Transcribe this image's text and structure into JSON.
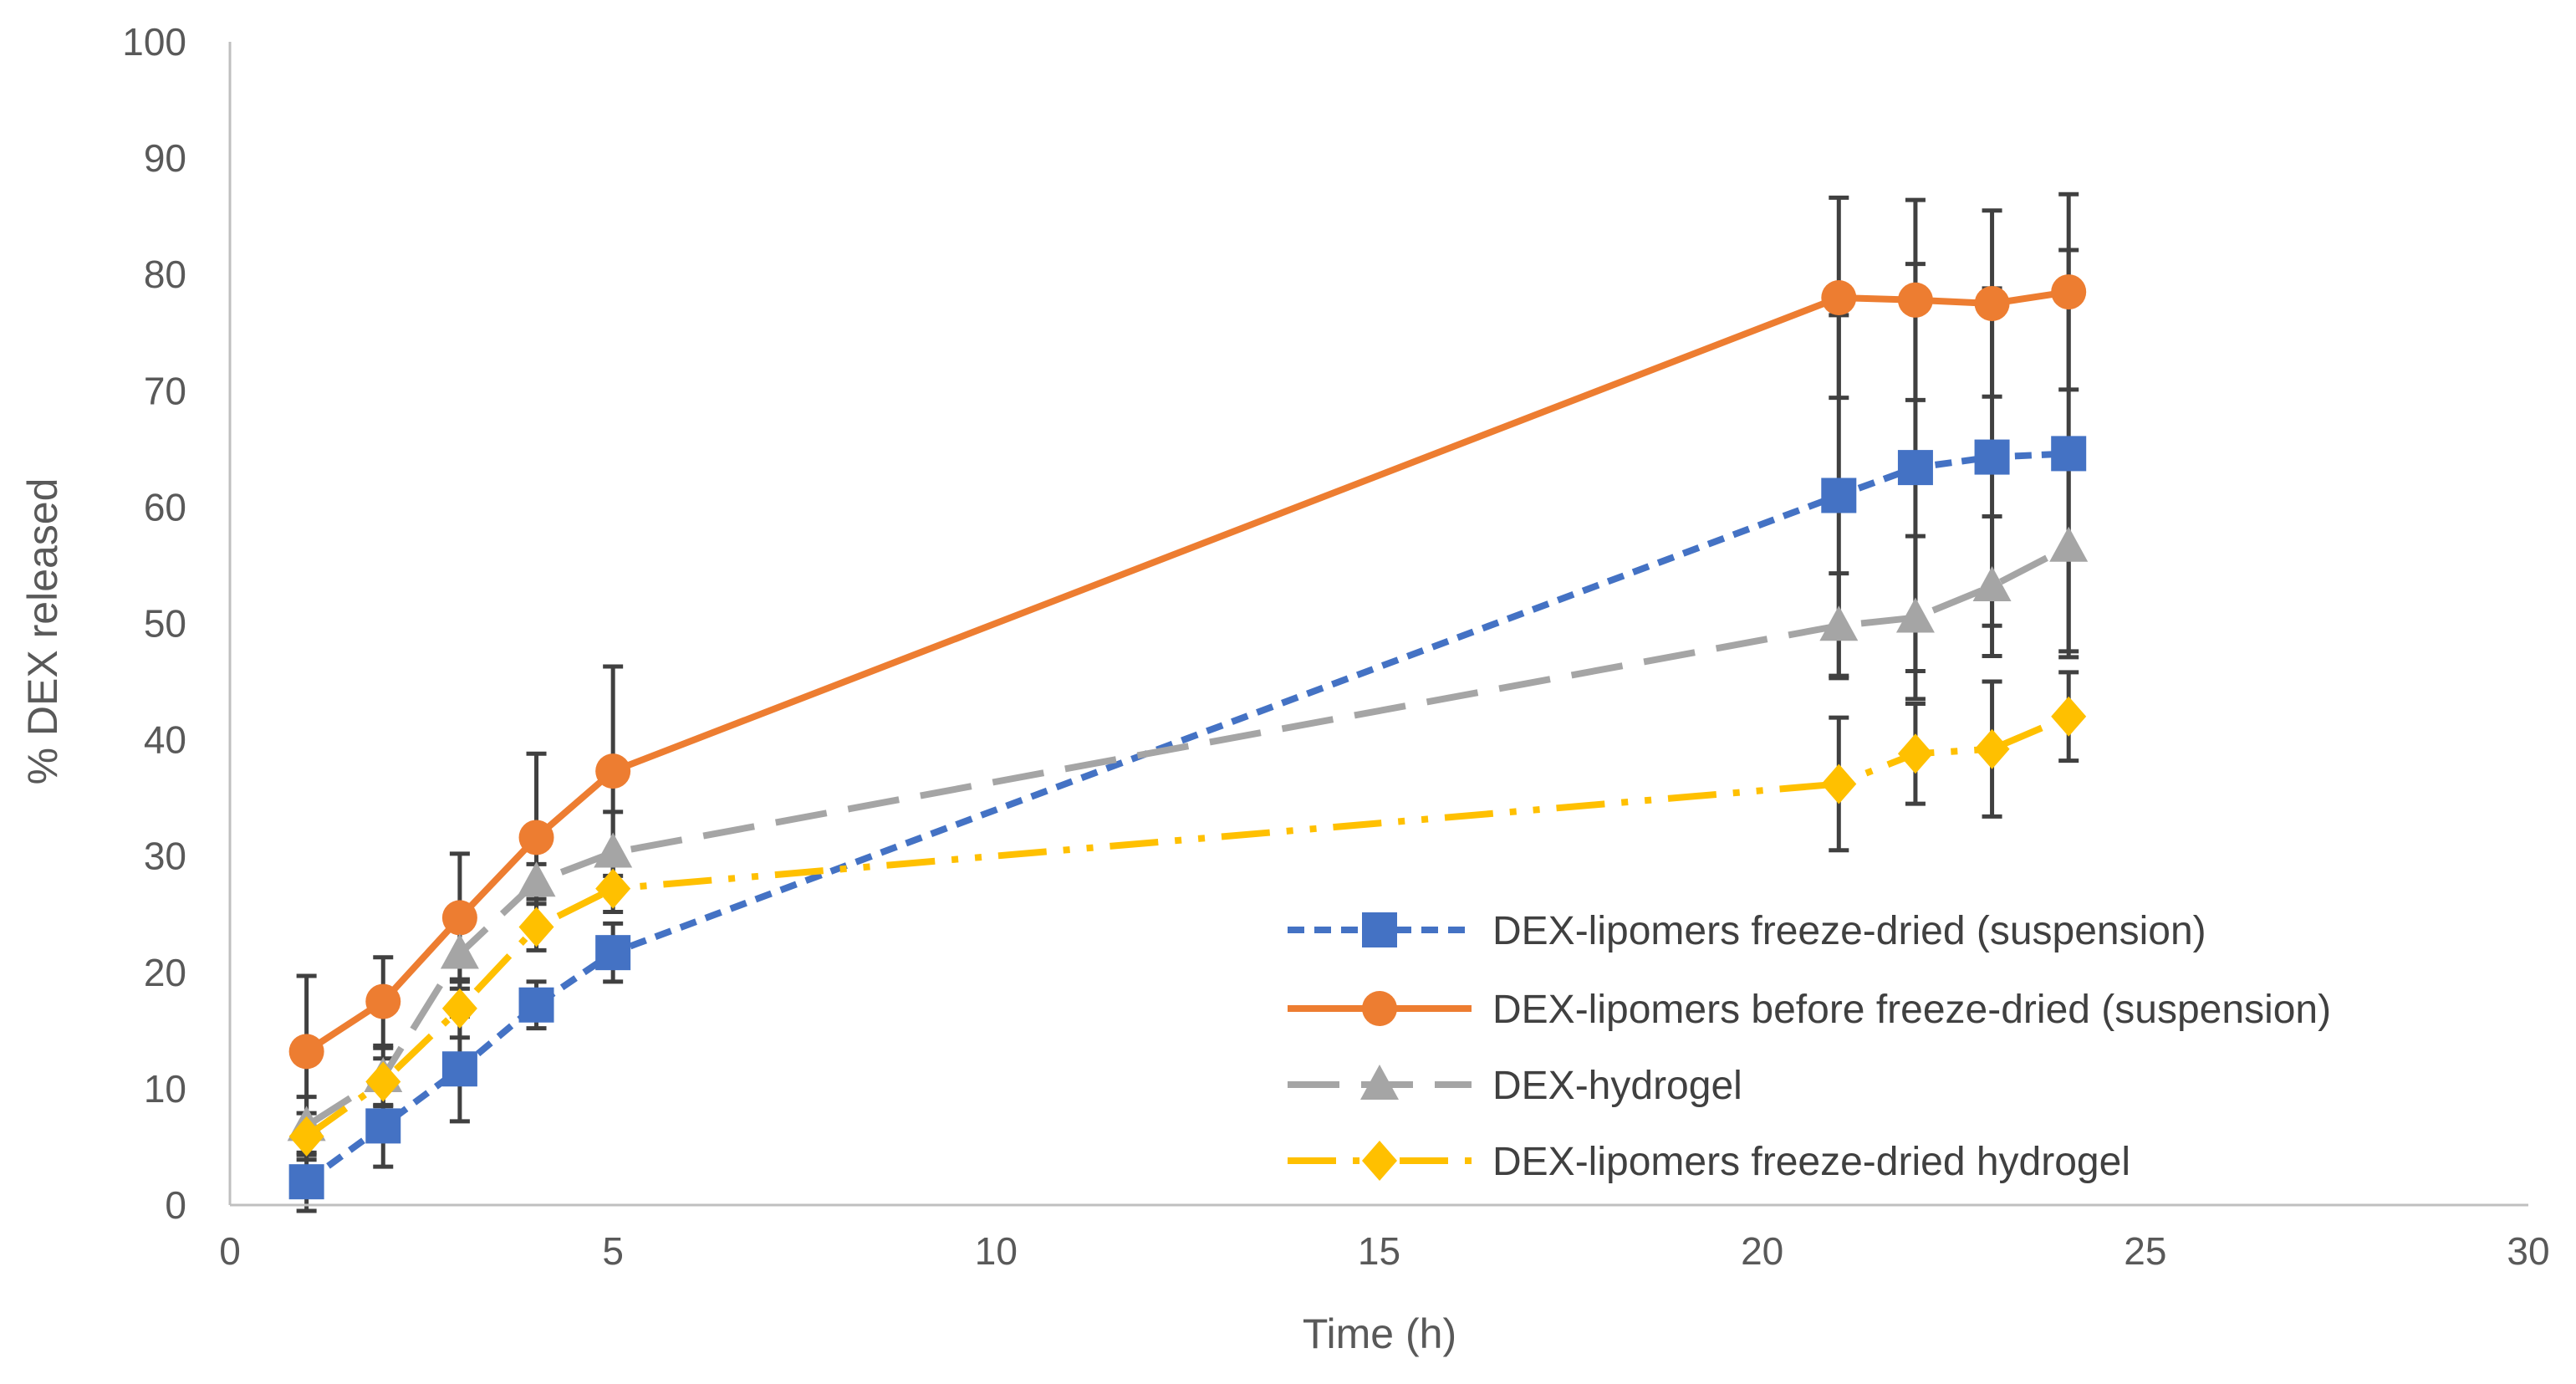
{
  "chart_data": {
    "type": "line",
    "title": "",
    "xlabel": "Time (h)",
    "ylabel": "% DEX released",
    "xlim": [
      0,
      30
    ],
    "ylim": [
      0,
      100
    ],
    "x_ticks": [
      "0",
      "5",
      "10",
      "15",
      "20",
      "25",
      "30"
    ],
    "y_ticks": [
      "0",
      "10",
      "20",
      "30",
      "40",
      "50",
      "60",
      "70",
      "80",
      "90",
      "100"
    ],
    "grid": false,
    "legend_position": "bottom-right",
    "error_bar_color": "#404040",
    "series": [
      {
        "name": "DEX-lipomers freeze-dried (suspension)",
        "color": "#4472C4",
        "marker": "square",
        "line_style": "dash",
        "x": [
          1,
          2,
          3,
          4,
          5,
          21,
          22,
          23,
          24
        ],
        "y": [
          2,
          6.8,
          11.7,
          17.2,
          21.7,
          61,
          63.4,
          64.3,
          64.6
        ],
        "err": [
          2.5,
          3.5,
          4.5,
          2,
          2.5,
          15.5,
          17.5,
          14.5,
          17.5
        ]
      },
      {
        "name": "DEX-lipomers before freeze-dried (suspension)",
        "color": "#ED7D31",
        "marker": "circle",
        "line_style": "solid",
        "x": [
          1,
          2,
          3,
          4,
          5,
          21,
          22,
          23,
          24
        ],
        "y": [
          13.2,
          17.5,
          24.7,
          31.6,
          37.3,
          78,
          77.8,
          77.5,
          78.5
        ],
        "err": [
          6.5,
          3.8,
          5.5,
          7.2,
          9,
          8.6,
          8.6,
          8,
          8.4
        ]
      },
      {
        "name": "DEX-hydrogel",
        "color": "#A5A5A5",
        "marker": "triangle",
        "line_style": "longdash",
        "x": [
          1,
          2,
          3,
          4,
          5,
          21,
          22,
          23,
          24
        ],
        "y": [
          6.8,
          11,
          21.6,
          27.8,
          30.3,
          49.8,
          50.5,
          53.2,
          56.6
        ],
        "err": [
          2.5,
          2.5,
          3,
          1.5,
          3.5,
          4.5,
          7,
          6,
          9
        ]
      },
      {
        "name": "DEX-lipomers freeze-dried hydrogel",
        "color": "#FFC000",
        "marker": "diamond",
        "line_style": "dashdotdot",
        "x": [
          1,
          2,
          3,
          4,
          5,
          21,
          22,
          23,
          24
        ],
        "y": [
          5.9,
          10.6,
          16.9,
          23.9,
          27.2,
          36.2,
          38.8,
          39.2,
          42
        ],
        "err": [
          2,
          2,
          2.5,
          2,
          2,
          5.7,
          4.3,
          5.8,
          3.8
        ]
      }
    ]
  }
}
